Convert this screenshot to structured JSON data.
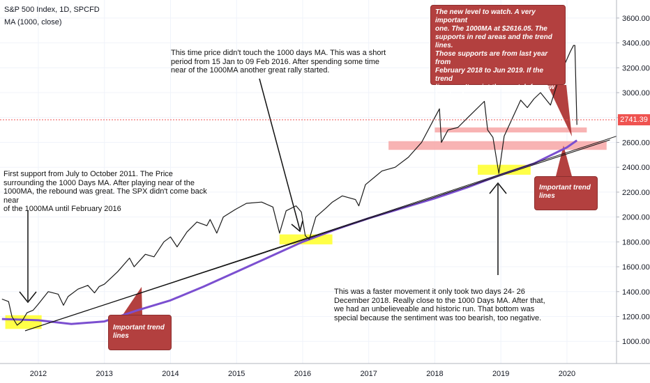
{
  "header": {
    "title": "S&P 500 Index, 1D, SPCFD",
    "indicator": "MA (1000, close)"
  },
  "colors": {
    "price": "#1a1a1a",
    "ma": "#7b4fd0",
    "trend": "#111111",
    "support_zone": "#f7a6a6",
    "highlight": "#ffff33",
    "callout": "#b3403f",
    "current_price": "#ef5350"
  },
  "annotations": {
    "note_2011": "First support  from July to October  2011.   The Price\nsurrounding the 1000  Days MA. After playing near of the\n1000MA, the rebound was great. The SPX didn't come back near\nof the 1000MA until February 2016",
    "note_2016": "This time price didn't touch the 1000 days MA. This was a short\nperiod from 15 Jan to 09 Feb 2016. After spending  some time\nnear of the 1000MA  another great rally started.",
    "note_2018": "This was a faster movement it only took two days 24- 26\nDecember 2018. Really close to the 1000 Days MA. After that,\nwe had an unbelieveable and historic run. That bottom was\nspecial  because the sentiment was too bearish, too negative.",
    "callout_level": "The new level to watch. A very important\none. The 1000MA at $2616.05. The\nsupports in red areas and the trend lines.\nThose supports are from last year from\nFebruary 2018 to Jun 2019. If the trend\nlines can't resist then watch for new\nlevels of support.",
    "callout_trend_1": "Important trend\nlines",
    "callout_trend_2": "Important trend\nlines"
  },
  "chart_data": {
    "type": "line",
    "x_ticks": [
      "2012",
      "2013",
      "2014",
      "2015",
      "2016",
      "2017",
      "2018",
      "2019",
      "2020"
    ],
    "y_ticks": [
      "3600.00",
      "3400.00",
      "3200.00",
      "3000.00",
      "2800.00",
      "2600.00",
      "2400.00",
      "2200.00",
      "2000.00",
      "1800.00",
      "1600.00",
      "1400.00",
      "1200.00",
      "1000.00"
    ],
    "xlim": [
      2011.42,
      2020.75
    ],
    "ylim": [
      822,
      3745
    ],
    "current_price": "2741.39",
    "series": [
      {
        "x": [
          2011.45,
          2011.55,
          2011.6,
          2011.68,
          2011.75,
          2011.83,
          2011.92,
          2012.0,
          2012.15,
          2012.3,
          2012.38,
          2012.45,
          2012.6,
          2012.75,
          2012.85,
          2012.92,
          2013.0,
          2013.2,
          2013.38,
          2013.45,
          2013.62,
          2013.75,
          2013.9,
          2014.0,
          2014.1,
          2014.25,
          2014.4,
          2014.55,
          2014.6,
          2014.7,
          2014.8,
          2014.98,
          2015.15,
          2015.38,
          2015.55,
          2015.65,
          2015.75,
          2015.9,
          2015.98,
          2016.04,
          2016.1,
          2016.2,
          2016.35,
          2016.45,
          2016.6,
          2016.8,
          2016.85,
          2016.95,
          2017.2,
          2017.4,
          2017.6,
          2017.8,
          2018.0,
          2018.07,
          2018.1,
          2018.2,
          2018.35,
          2018.5,
          2018.75,
          2018.8,
          2018.88,
          2018.97,
          2019.05,
          2019.3,
          2019.4,
          2019.5,
          2019.6,
          2019.75,
          2019.9,
          2020.05,
          2020.1,
          2020.12,
          2020.15
        ],
        "values": [
          1340,
          1320,
          1200,
          1130,
          1160,
          1230,
          1250,
          1300,
          1400,
          1380,
          1290,
          1360,
          1420,
          1450,
          1390,
          1440,
          1460,
          1560,
          1670,
          1600,
          1700,
          1680,
          1800,
          1840,
          1760,
          1880,
          1960,
          1930,
          1980,
          1870,
          2000,
          2060,
          2110,
          2120,
          2080,
          1870,
          2050,
          2090,
          2040,
          1850,
          1820,
          2000,
          2070,
          2120,
          2170,
          2140,
          2090,
          2260,
          2370,
          2400,
          2480,
          2600,
          2800,
          2870,
          2600,
          2700,
          2720,
          2800,
          2930,
          2700,
          2640,
          2350,
          2650,
          2940,
          2880,
          2950,
          3000,
          2900,
          3150,
          3330,
          3380,
          3380,
          2741
        ]
      },
      {
        "name": "MA (1000, close)",
        "x": [
          2011.45,
          2012.0,
          2012.5,
          2013.0,
          2013.5,
          2014.0,
          2014.5,
          2015.0,
          2015.5,
          2016.0,
          2016.5,
          2017.0,
          2017.5,
          2018.0,
          2018.5,
          2019.0,
          2019.5,
          2020.0,
          2020.15
        ],
        "values": [
          1180,
          1170,
          1140,
          1160,
          1250,
          1330,
          1440,
          1560,
          1680,
          1800,
          1900,
          1990,
          2070,
          2150,
          2240,
          2340,
          2430,
          2560,
          2616
        ]
      }
    ],
    "trend_lines": [
      {
        "x": [
          2011.8,
          2020.75
        ],
        "values": [
          1085,
          2650
        ]
      },
      {
        "x": [
          2011.8,
          2020.65
        ],
        "values": [
          1085,
          2620
        ]
      }
    ],
    "support_zones": [
      {
        "y": [
          2680,
          2720
        ],
        "x": [
          2018.0,
          2020.3
        ]
      },
      {
        "y": [
          2540,
          2610
        ],
        "x": [
          2017.3,
          2020.6
        ]
      }
    ],
    "highlight_zones": [
      {
        "x": [
          2011.5,
          2012.05
        ],
        "y": [
          1100,
          1210
        ]
      },
      {
        "x": [
          2015.65,
          2016.45
        ],
        "y": [
          1780,
          1860
        ]
      },
      {
        "x": [
          2018.65,
          2019.45
        ],
        "y": [
          2340,
          2420
        ]
      }
    ]
  }
}
